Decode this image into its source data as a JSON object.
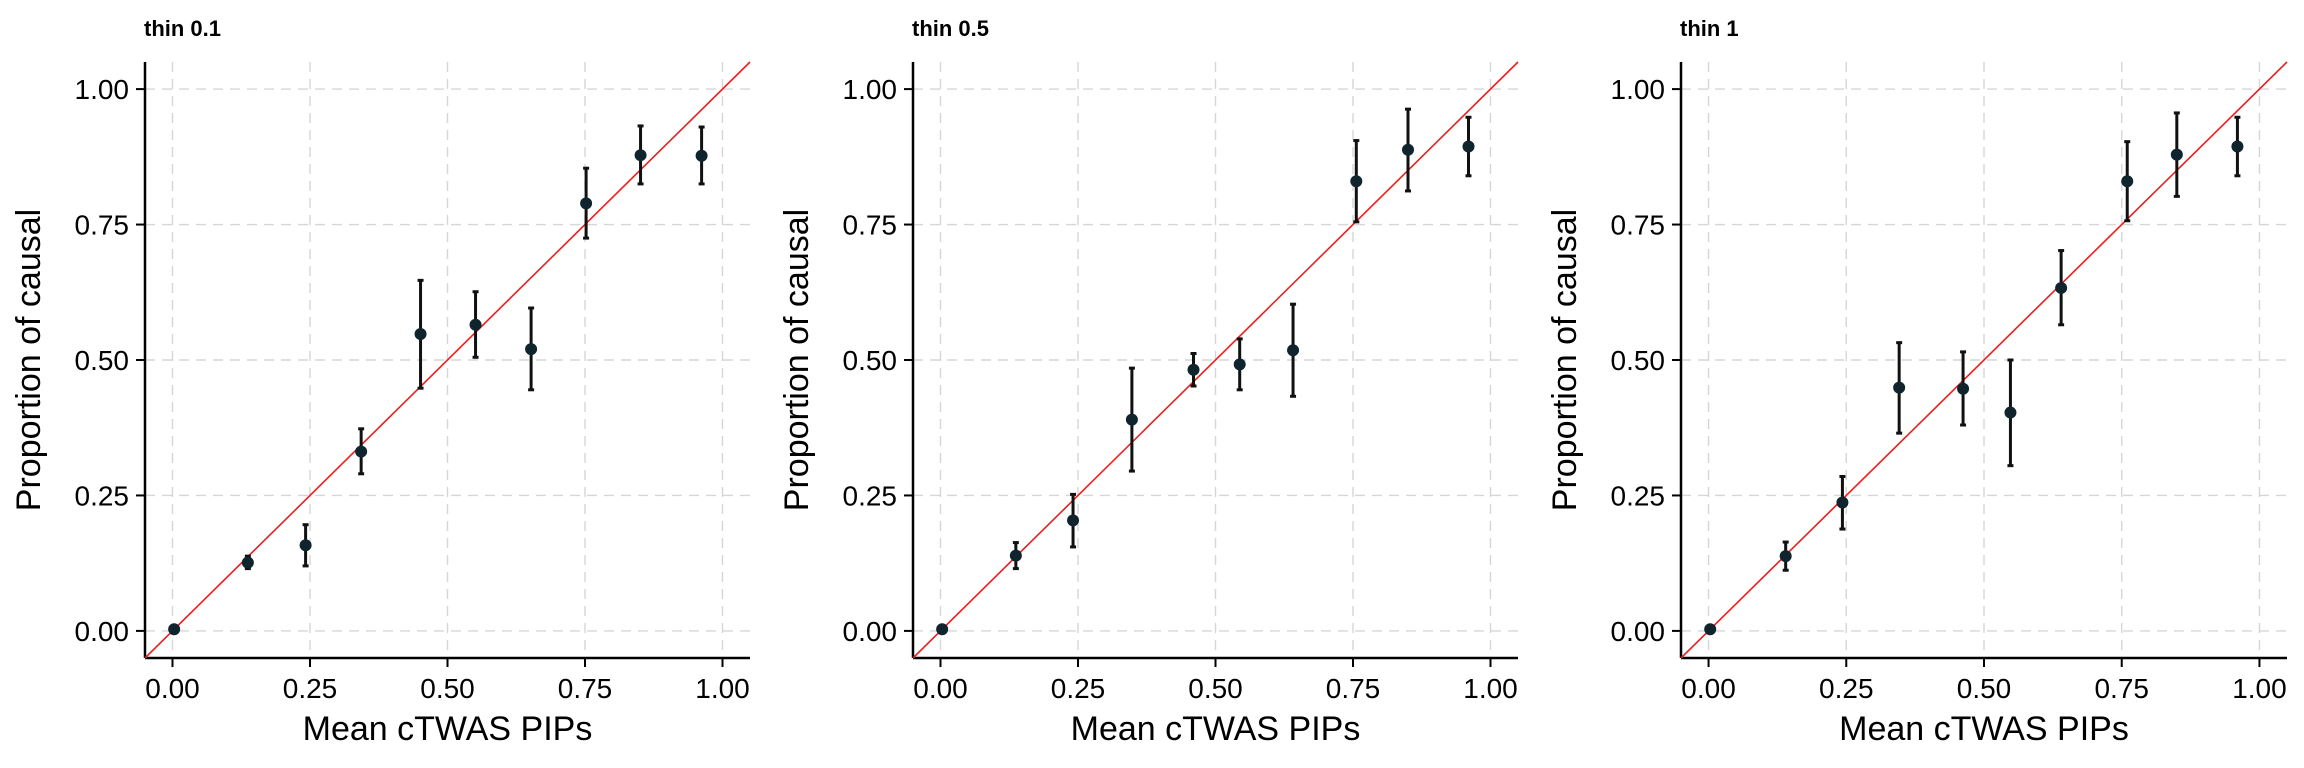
{
  "chart_data": [
    {
      "type": "scatter",
      "title": "thin 0.1",
      "xlabel": "Mean cTWAS PIPs",
      "ylabel": "Proportion of causal",
      "xlim": [
        -0.05,
        1.05
      ],
      "ylim": [
        -0.05,
        1.05
      ],
      "xticks": [
        "0.00",
        "0.25",
        "0.50",
        "0.75",
        "1.00"
      ],
      "yticks": [
        "0.00",
        "0.25",
        "0.50",
        "0.75",
        "1.00"
      ],
      "grid": true,
      "reference_line": "y = x",
      "points": [
        {
          "x": 0.003,
          "y": 0.003,
          "lo": 0.0,
          "hi": 0.007
        },
        {
          "x": 0.137,
          "y": 0.126,
          "lo": 0.115,
          "hi": 0.138
        },
        {
          "x": 0.242,
          "y": 0.158,
          "lo": 0.12,
          "hi": 0.196
        },
        {
          "x": 0.343,
          "y": 0.331,
          "lo": 0.29,
          "hi": 0.373
        },
        {
          "x": 0.451,
          "y": 0.548,
          "lo": 0.448,
          "hi": 0.647
        },
        {
          "x": 0.551,
          "y": 0.565,
          "lo": 0.505,
          "hi": 0.626
        },
        {
          "x": 0.652,
          "y": 0.52,
          "lo": 0.445,
          "hi": 0.596
        },
        {
          "x": 0.752,
          "y": 0.789,
          "lo": 0.725,
          "hi": 0.854
        },
        {
          "x": 0.851,
          "y": 0.878,
          "lo": 0.825,
          "hi": 0.932
        },
        {
          "x": 0.962,
          "y": 0.877,
          "lo": 0.825,
          "hi": 0.93
        }
      ]
    },
    {
      "type": "scatter",
      "title": "thin 0.5",
      "xlabel": "Mean cTWAS PIPs",
      "ylabel": "Proportion of causal",
      "xlim": [
        -0.05,
        1.05
      ],
      "ylim": [
        -0.05,
        1.05
      ],
      "xticks": [
        "0.00",
        "0.25",
        "0.50",
        "0.75",
        "1.00"
      ],
      "yticks": [
        "0.00",
        "0.25",
        "0.50",
        "0.75",
        "1.00"
      ],
      "grid": true,
      "reference_line": "y = x",
      "points": [
        {
          "x": 0.003,
          "y": 0.003,
          "lo": 0.0,
          "hi": 0.007
        },
        {
          "x": 0.137,
          "y": 0.139,
          "lo": 0.115,
          "hi": 0.163
        },
        {
          "x": 0.241,
          "y": 0.204,
          "lo": 0.155,
          "hi": 0.252
        },
        {
          "x": 0.348,
          "y": 0.39,
          "lo": 0.295,
          "hi": 0.485
        },
        {
          "x": 0.46,
          "y": 0.482,
          "lo": 0.452,
          "hi": 0.512
        },
        {
          "x": 0.544,
          "y": 0.492,
          "lo": 0.445,
          "hi": 0.539
        },
        {
          "x": 0.641,
          "y": 0.518,
          "lo": 0.433,
          "hi": 0.603
        },
        {
          "x": 0.756,
          "y": 0.83,
          "lo": 0.755,
          "hi": 0.905
        },
        {
          "x": 0.85,
          "y": 0.888,
          "lo": 0.812,
          "hi": 0.963
        },
        {
          "x": 0.96,
          "y": 0.894,
          "lo": 0.84,
          "hi": 0.948
        }
      ]
    },
    {
      "type": "scatter",
      "title": "thin 1",
      "xlabel": "Mean cTWAS PIPs",
      "ylabel": "Proportion of causal",
      "xlim": [
        -0.05,
        1.05
      ],
      "ylim": [
        -0.05,
        1.05
      ],
      "xticks": [
        "0.00",
        "0.25",
        "0.50",
        "0.75",
        "1.00"
      ],
      "yticks": [
        "0.00",
        "0.25",
        "0.50",
        "0.75",
        "1.00"
      ],
      "grid": true,
      "reference_line": "y = x",
      "points": [
        {
          "x": 0.003,
          "y": 0.003,
          "lo": 0.0,
          "hi": 0.007
        },
        {
          "x": 0.14,
          "y": 0.138,
          "lo": 0.112,
          "hi": 0.164
        },
        {
          "x": 0.243,
          "y": 0.237,
          "lo": 0.188,
          "hi": 0.285
        },
        {
          "x": 0.346,
          "y": 0.449,
          "lo": 0.365,
          "hi": 0.532
        },
        {
          "x": 0.462,
          "y": 0.447,
          "lo": 0.38,
          "hi": 0.515
        },
        {
          "x": 0.548,
          "y": 0.403,
          "lo": 0.305,
          "hi": 0.5
        },
        {
          "x": 0.64,
          "y": 0.633,
          "lo": 0.565,
          "hi": 0.702
        },
        {
          "x": 0.76,
          "y": 0.83,
          "lo": 0.757,
          "hi": 0.903
        },
        {
          "x": 0.85,
          "y": 0.879,
          "lo": 0.802,
          "hi": 0.956
        },
        {
          "x": 0.96,
          "y": 0.894,
          "lo": 0.84,
          "hi": 0.948
        }
      ]
    }
  ],
  "colors": {
    "point": "#10242e",
    "error_bar": "#111111",
    "reference_line": "#ee1d1d",
    "grid": "#d6d6d6",
    "axis": "#000000"
  }
}
